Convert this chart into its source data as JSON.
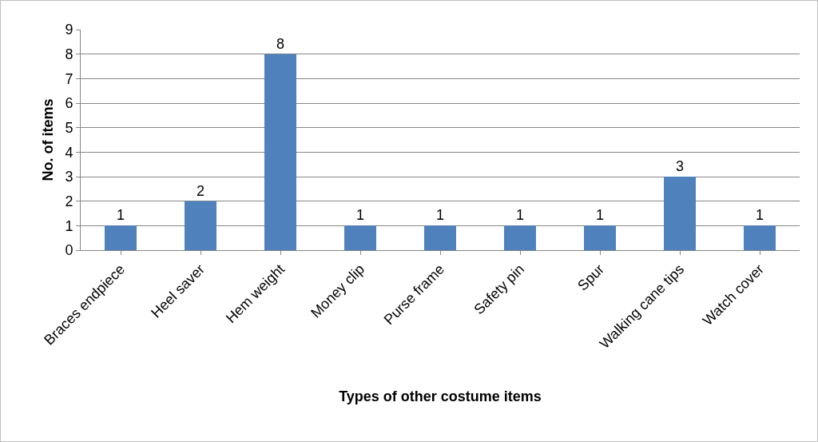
{
  "chart_data": {
    "type": "bar",
    "xlabel": "Types of other costume items",
    "ylabel": "No. of items",
    "categories": [
      "Braces endpiece",
      "Heel saver",
      "Hem weight",
      "Money clip",
      "Purse frame",
      "Safety pin",
      "Spur",
      "Walking cane tips",
      "Watch cover"
    ],
    "values": [
      1,
      2,
      8,
      1,
      1,
      1,
      1,
      3,
      1
    ],
    "color": "#4f81bd",
    "ylim": [
      0,
      9
    ],
    "yticks": [
      0,
      1,
      2,
      3,
      4,
      5,
      6,
      7,
      8,
      9
    ],
    "grid": "y",
    "data_labels": true
  }
}
